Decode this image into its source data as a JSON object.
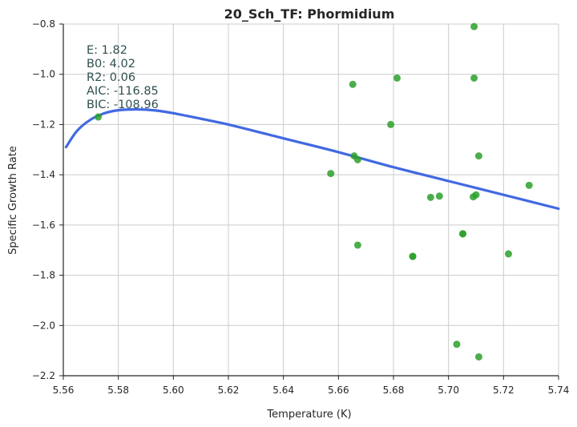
{
  "chart_data": {
    "type": "scatter",
    "title": "20_Sch_TF: Phormidium",
    "xlabel": "Temperature (K)",
    "ylabel": "Specific Growth Rate",
    "xlim": [
      5.56,
      5.74
    ],
    "ylim": [
      -2.2,
      -0.8
    ],
    "x_ticks": [
      "5.56",
      "5.58",
      "5.60",
      "5.62",
      "5.64",
      "5.66",
      "5.68",
      "5.70",
      "5.72",
      "5.74"
    ],
    "y_ticks": [
      "−2.2",
      "−2.0",
      "−1.8",
      "−1.6",
      "−1.4",
      "−1.2",
      "−1.0",
      "−0.8"
    ],
    "grid": true,
    "point_color": "#2ca02c",
    "curve_color": "#4169e1",
    "annotations": [
      "E:  1.82",
      "B0:  4.02",
      "R2:  0.06",
      "AIC: -116.85",
      "BIC: -108.96"
    ],
    "points": [
      {
        "x": 5.5727,
        "y": -1.17
      },
      {
        "x": 5.6572,
        "y": -1.395
      },
      {
        "x": 5.6652,
        "y": -1.04
      },
      {
        "x": 5.6657,
        "y": -1.325
      },
      {
        "x": 5.667,
        "y": -1.34
      },
      {
        "x": 5.667,
        "y": -1.68
      },
      {
        "x": 5.679,
        "y": -1.2
      },
      {
        "x": 5.6813,
        "y": -1.015
      },
      {
        "x": 5.687,
        "y": -1.725
      },
      {
        "x": 5.687,
        "y": -1.725
      },
      {
        "x": 5.6935,
        "y": -1.49
      },
      {
        "x": 5.6967,
        "y": -1.485
      },
      {
        "x": 5.703,
        "y": -2.075
      },
      {
        "x": 5.7052,
        "y": -1.635
      },
      {
        "x": 5.7052,
        "y": -1.635
      },
      {
        "x": 5.709,
        "y": -1.488
      },
      {
        "x": 5.7093,
        "y": -1.015
      },
      {
        "x": 5.7093,
        "y": -0.81
      },
      {
        "x": 5.71,
        "y": -1.48
      },
      {
        "x": 5.711,
        "y": -1.325
      },
      {
        "x": 5.711,
        "y": -2.125
      },
      {
        "x": 5.7218,
        "y": -1.715
      },
      {
        "x": 5.7293,
        "y": -1.442
      }
    ],
    "fit_curve": {
      "x": [
        5.561,
        5.565,
        5.57,
        5.575,
        5.58,
        5.585,
        5.59,
        5.595,
        5.6,
        5.61,
        5.62,
        5.64,
        5.66,
        5.68,
        5.7,
        5.72,
        5.74
      ],
      "y": [
        -1.29,
        -1.225,
        -1.18,
        -1.155,
        -1.143,
        -1.14,
        -1.141,
        -1.146,
        -1.155,
        -1.177,
        -1.2,
        -1.255,
        -1.31,
        -1.37,
        -1.425,
        -1.48,
        -1.535
      ]
    }
  }
}
